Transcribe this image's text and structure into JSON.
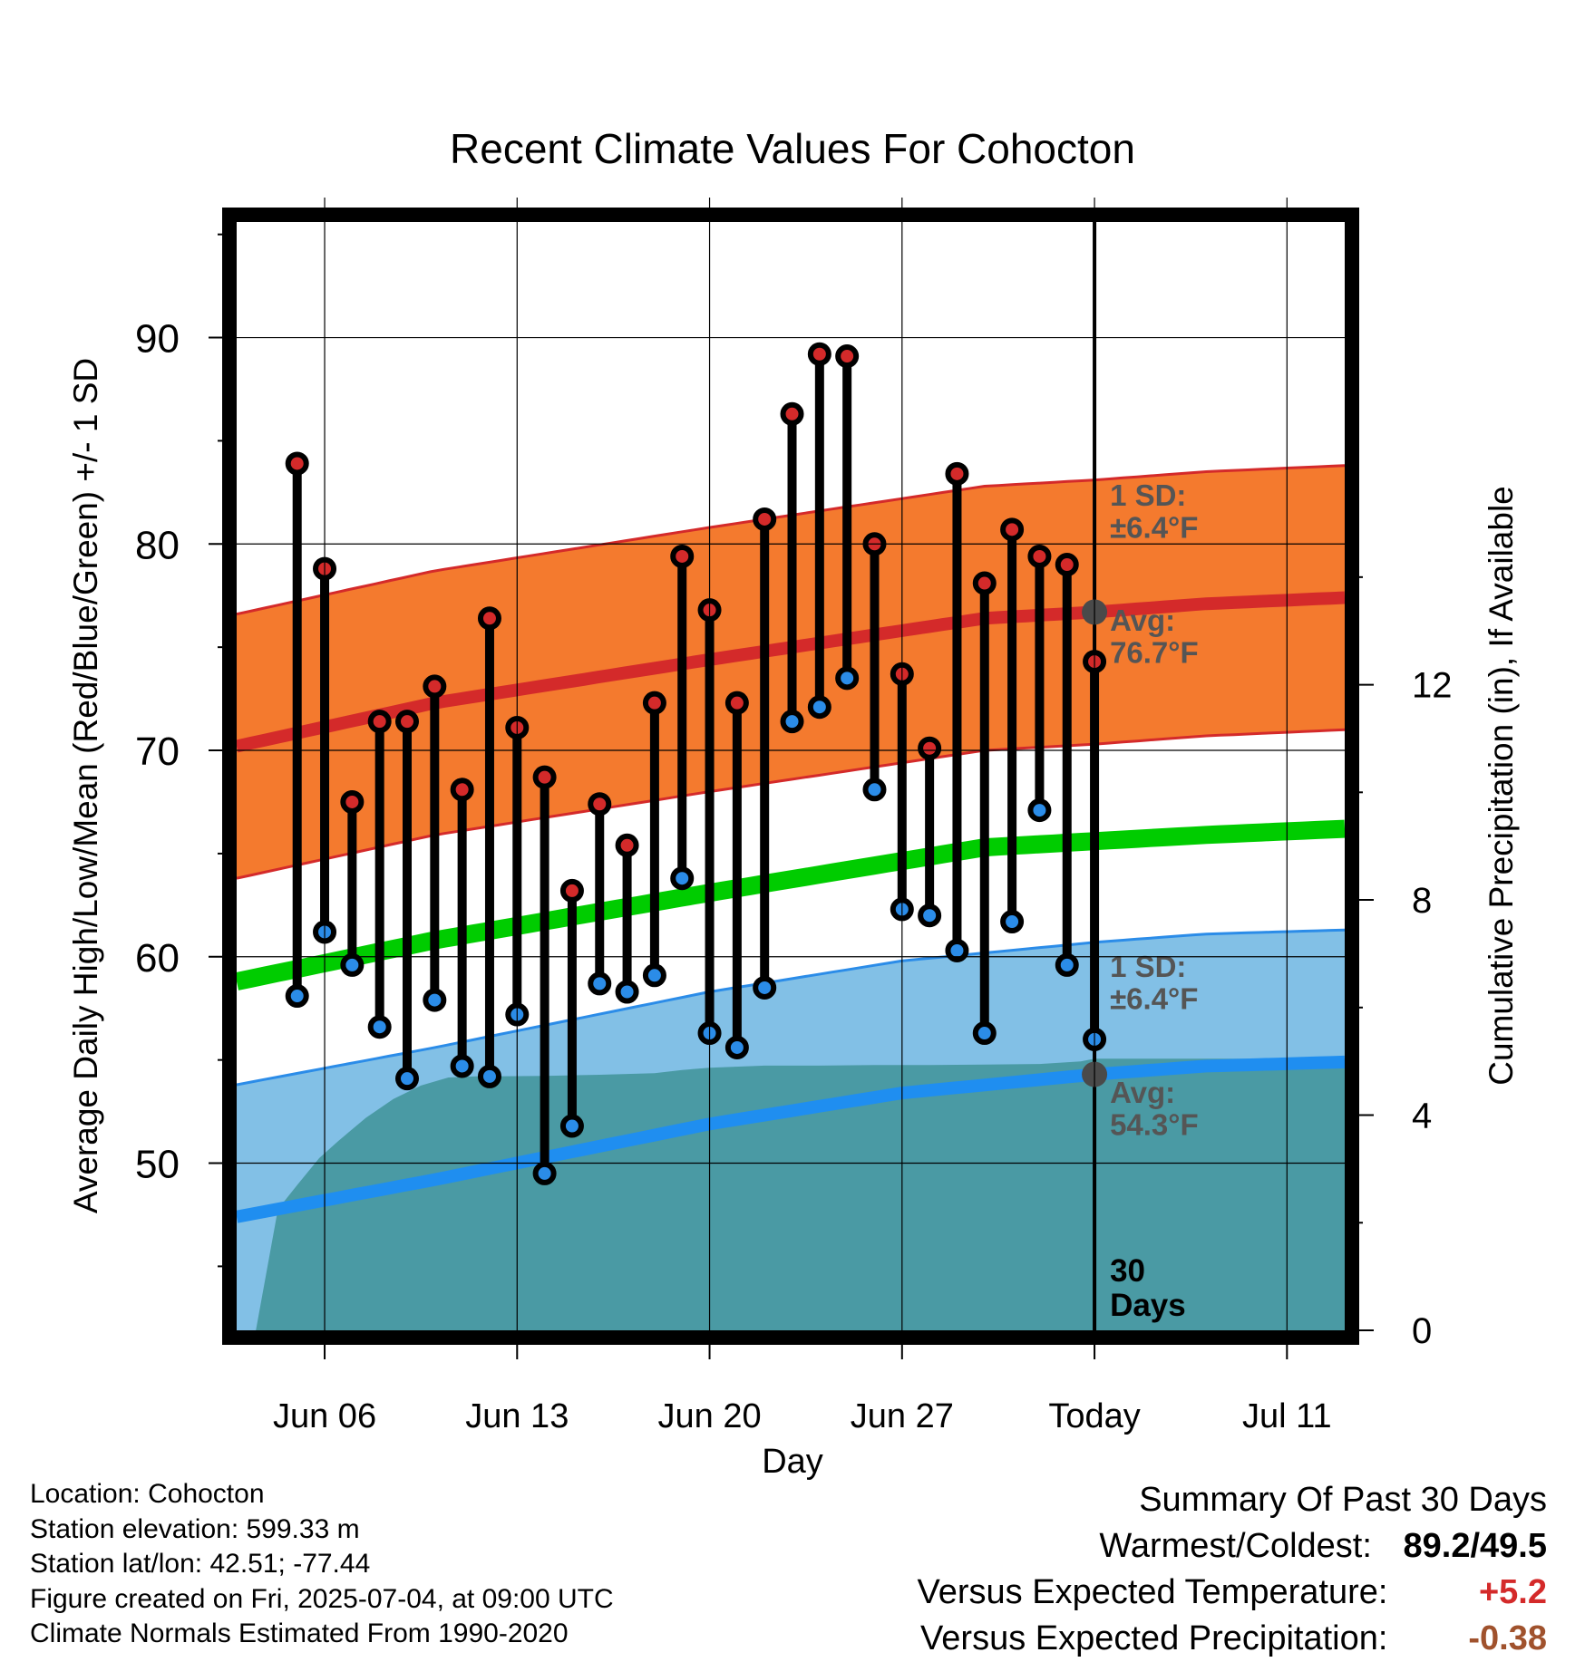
{
  "chart_data": {
    "type": "line",
    "title": "Recent Climate Values For Cohocton",
    "xlabel": "Day",
    "ylabel": "Average Daily High/Low/Mean (Red/Blue/Green) +/- 1 SD",
    "y2label": "Cumulative Precipitation (in), If Available",
    "x_ticks": [
      {
        "day": 6,
        "label": "Jun 06"
      },
      {
        "day": 13,
        "label": "Jun 13"
      },
      {
        "day": 20,
        "label": "Jun 20"
      },
      {
        "day": 27,
        "label": "Jun 27"
      },
      {
        "day": 34,
        "label": "Today"
      },
      {
        "day": 41,
        "label": "Jul 11"
      }
    ],
    "xlim": [
      2.8,
      43.1
    ],
    "ylim": [
      41.9,
      95.6
    ],
    "y_ticks": [
      50,
      60,
      70,
      80,
      90
    ],
    "y2lim": [
      0,
      20.6
    ],
    "y2_ticks": [
      0,
      4,
      8,
      12
    ],
    "grid": true,
    "colors": {
      "high_sd_band": "#f47a2e",
      "high_sd_edge": "#d42a2a",
      "high_avg": "#d42a2a",
      "mean_avg": "#00cc00",
      "low_sd_band": "#82c0e6",
      "low_sd_edge": "#2b8ce8",
      "low_avg": "#1f8ef0",
      "precip": "#4a9aa4",
      "high_marker": "#d42a2a",
      "low_marker": "#2b8ce8",
      "today_marker": "#4a4a4a"
    },
    "normals": {
      "high_avg": [
        [
          2.8,
          70.2
        ],
        [
          10,
          72.3
        ],
        [
          20,
          74.4
        ],
        [
          30,
          76.4
        ],
        [
          34,
          76.7
        ],
        [
          38,
          77.1
        ],
        [
          43.1,
          77.4
        ]
      ],
      "high_sd": 6.4,
      "mean_avg": [
        [
          2.8,
          58.8
        ],
        [
          10,
          60.8
        ],
        [
          20,
          63.1
        ],
        [
          30,
          65.3
        ],
        [
          34,
          65.6
        ],
        [
          38,
          65.9
        ],
        [
          43.1,
          66.2
        ]
      ],
      "low_avg": [
        [
          2.8,
          47.4
        ],
        [
          10,
          49.2
        ],
        [
          20,
          51.9
        ],
        [
          27,
          53.4
        ],
        [
          34,
          54.3
        ],
        [
          38,
          54.7
        ],
        [
          43.1,
          54.9
        ]
      ],
      "low_sd": 6.4
    },
    "series": [
      {
        "name": "High",
        "x": [
          5,
          6,
          7,
          8,
          9,
          10,
          11,
          12,
          13,
          14,
          15,
          16,
          17,
          18,
          19,
          20,
          21,
          22,
          23,
          24,
          25,
          26,
          27,
          28,
          29,
          30,
          31,
          32,
          33,
          34
        ],
        "values": [
          83.9,
          78.8,
          67.5,
          71.4,
          71.4,
          73.1,
          68.1,
          76.4,
          71.1,
          68.7,
          63.2,
          67.4,
          65.4,
          72.3,
          79.4,
          76.8,
          72.3,
          81.2,
          86.3,
          89.2,
          89.1,
          80.0,
          73.7,
          70.1,
          83.4,
          78.1,
          80.7,
          79.4,
          79.0,
          74.3
        ]
      },
      {
        "name": "Low",
        "x": [
          5,
          6,
          7,
          8,
          9,
          10,
          11,
          12,
          13,
          14,
          15,
          16,
          17,
          18,
          19,
          20,
          21,
          22,
          23,
          24,
          25,
          26,
          27,
          28,
          29,
          30,
          31,
          32,
          33,
          34
        ],
        "values": [
          58.1,
          61.2,
          59.6,
          56.6,
          54.1,
          57.9,
          54.7,
          54.2,
          57.2,
          49.5,
          51.8,
          58.7,
          58.3,
          59.1,
          63.8,
          56.3,
          55.6,
          58.5,
          71.4,
          72.1,
          73.5,
          68.1,
          62.3,
          62.0,
          60.3,
          56.3,
          61.7,
          67.1,
          59.6,
          56.0
        ]
      },
      {
        "name": "Cumulative Precipitation",
        "axis": "y2",
        "x": [
          3.5,
          4.3,
          5,
          5.8,
          6.5,
          7.5,
          8.5,
          9.5,
          10.5,
          11.5,
          12,
          14,
          15,
          16,
          18,
          19,
          20,
          22,
          24,
          26,
          28,
          30,
          32,
          33.5,
          34,
          36,
          38,
          43.1
        ],
        "values": [
          0.0,
          2.25,
          2.7,
          3.2,
          3.52,
          3.95,
          4.3,
          4.55,
          4.7,
          4.72,
          4.72,
          4.73,
          4.74,
          4.75,
          4.78,
          4.84,
          4.88,
          4.92,
          4.92,
          4.93,
          4.93,
          4.94,
          4.95,
          5.0,
          5.05,
          5.05,
          5.05,
          5.05
        ]
      }
    ],
    "annotations": {
      "high_sd_label": [
        "1 SD:",
        "±6.4°F"
      ],
      "high_avg_label": [
        "Avg:",
        "76.7°F"
      ],
      "low_sd_label": [
        "1 SD:",
        "±6.4°F"
      ],
      "low_avg_label": [
        "Avg:",
        "54.3°F"
      ],
      "window_label": [
        "30",
        "Days"
      ]
    }
  },
  "footer": {
    "location": "Location: Cohocton",
    "elevation": "Station elevation: 599.33 m",
    "latlon": "Station lat/lon: 42.51; -77.44",
    "created": "Figure created on Fri, 2025-07-04, at 09:00 UTC",
    "normals": "Climate Normals Estimated From 1990-2020"
  },
  "summary": {
    "title": "Summary Of Past 30 Days",
    "warmest_coldest_label": "Warmest/Coldest:",
    "warmest_value": "89.2",
    "coldest_value": "/49.5",
    "temp_label": "Versus Expected Temperature:",
    "temp_value": "+5.2",
    "precip_label": "Versus Expected Precipitation:",
    "precip_value": "-0.38"
  }
}
